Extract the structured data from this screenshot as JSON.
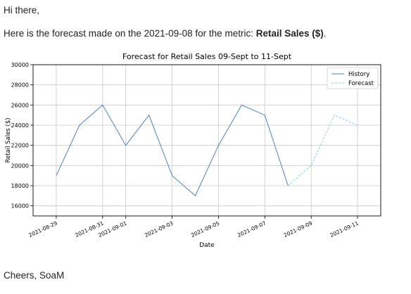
{
  "email": {
    "greeting": "Hi there,",
    "intro_prefix": "Here is the forecast made on the ",
    "forecast_date": "2021-09-08",
    "intro_middle": " for the metric: ",
    "metric": "Retail Sales ($)",
    "intro_suffix": ".",
    "signoff": "Cheers, SoaM"
  },
  "colors": {
    "history": "#4f81bd",
    "forecast": "#87ceeb",
    "grid": "#c8c8c8",
    "axis": "#000000"
  },
  "chart_data": {
    "type": "line",
    "title": "Forecast for Retail Sales 09-Sept to 11-Sept",
    "xlabel": "Date",
    "ylabel": "Retail Sales ($)",
    "xlim": [
      "2021-08-28",
      "2021-09-12"
    ],
    "ylim": [
      15000,
      30000
    ],
    "yticks": [
      16000,
      18000,
      20000,
      22000,
      24000,
      26000,
      28000,
      30000
    ],
    "xticks": [
      "2021-08-29",
      "2021-08-31",
      "2021-09-01",
      "2021-09-03",
      "2021-09-05",
      "2021-09-07",
      "2021-09-09",
      "2021-09-11"
    ],
    "grid": true,
    "legend_position": "top-right",
    "series": [
      {
        "name": "History",
        "style": "solid",
        "x": [
          "2021-08-29",
          "2021-08-30",
          "2021-08-31",
          "2021-09-01",
          "2021-09-02",
          "2021-09-03",
          "2021-09-04",
          "2021-09-05",
          "2021-09-06",
          "2021-09-07",
          "2021-09-08"
        ],
        "y": [
          19000,
          24000,
          26000,
          22000,
          25000,
          19000,
          17000,
          22000,
          26000,
          25000,
          18000
        ]
      },
      {
        "name": "Forecast",
        "style": "dashed",
        "x": [
          "2021-09-08",
          "2021-09-09",
          "2021-09-10",
          "2021-09-11"
        ],
        "y": [
          18000,
          20000,
          25000,
          24000
        ]
      }
    ]
  }
}
